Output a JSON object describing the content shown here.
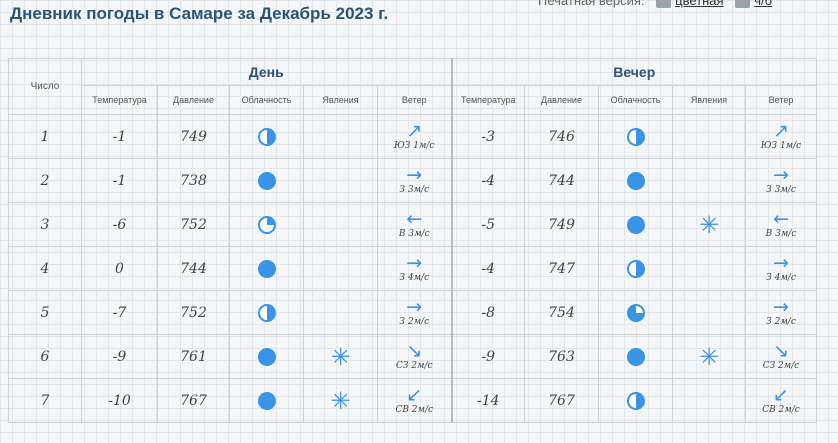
{
  "page": {
    "title": "Дневник погоды в Самаре за Декабрь 2023 г."
  },
  "print_bar": {
    "label": "Печатная версия:",
    "color_link": "цветная",
    "bw_link": "ч/б"
  },
  "table": {
    "num_header": "Число",
    "day_header": "День",
    "evening_header": "Вечер",
    "columns": [
      "Температура",
      "Давление",
      "Облачность",
      "Явления",
      "Ветер"
    ],
    "rows": [
      {
        "date": "1",
        "day": {
          "temp": "-1",
          "pressure": "749",
          "cloud": "half-icon",
          "phenomena": "",
          "wind": {
            "dir": "ne",
            "text": "ЮЗ 1м/с"
          }
        },
        "evening": {
          "temp": "-3",
          "pressure": "746",
          "cloud": "half-icon",
          "phenomena": "",
          "wind": {
            "dir": "ne",
            "text": "ЮЗ 1м/с"
          }
        }
      },
      {
        "date": "2",
        "day": {
          "temp": "-1",
          "pressure": "738",
          "cloud": "full-icon",
          "phenomena": "",
          "wind": {
            "dir": "e",
            "text": "З 3м/с"
          }
        },
        "evening": {
          "temp": "-4",
          "pressure": "744",
          "cloud": "full-icon",
          "phenomena": "",
          "wind": {
            "dir": "e",
            "text": "З 3м/с"
          }
        }
      },
      {
        "date": "3",
        "day": {
          "temp": "-6",
          "pressure": "752",
          "cloud": "q1-icon",
          "phenomena": "",
          "wind": {
            "dir": "w",
            "text": "В 3м/с"
          }
        },
        "evening": {
          "temp": "-5",
          "pressure": "749",
          "cloud": "full-icon",
          "phenomena": "snow-icon",
          "wind": {
            "dir": "w",
            "text": "В 3м/с"
          }
        }
      },
      {
        "date": "4",
        "day": {
          "temp": "0",
          "pressure": "744",
          "cloud": "full-icon",
          "phenomena": "",
          "wind": {
            "dir": "e",
            "text": "З 4м/с"
          }
        },
        "evening": {
          "temp": "-4",
          "pressure": "747",
          "cloud": "half-icon",
          "phenomena": "",
          "wind": {
            "dir": "e",
            "text": "З 4м/с"
          }
        }
      },
      {
        "date": "5",
        "day": {
          "temp": "-7",
          "pressure": "752",
          "cloud": "half-icon",
          "phenomena": "",
          "wind": {
            "dir": "e",
            "text": "З 2м/с"
          }
        },
        "evening": {
          "temp": "-8",
          "pressure": "754",
          "cloud": "q3-icon",
          "phenomena": "",
          "wind": {
            "dir": "e",
            "text": "З 2м/с"
          }
        }
      },
      {
        "date": "6",
        "day": {
          "temp": "-9",
          "pressure": "761",
          "cloud": "full-icon",
          "phenomena": "snow-icon",
          "wind": {
            "dir": "se",
            "text": "СЗ 2м/с"
          }
        },
        "evening": {
          "temp": "-9",
          "pressure": "763",
          "cloud": "full-icon",
          "phenomena": "snow-icon",
          "wind": {
            "dir": "se",
            "text": "СЗ 2м/с"
          }
        }
      },
      {
        "date": "7",
        "day": {
          "temp": "-10",
          "pressure": "767",
          "cloud": "full-icon",
          "phenomena": "snow-icon",
          "wind": {
            "dir": "sw",
            "text": "СВ 2м/с"
          }
        },
        "evening": {
          "temp": "-14",
          "pressure": "767",
          "cloud": "half-icon",
          "phenomena": "",
          "wind": {
            "dir": "sw",
            "text": "СВ 2м/с"
          }
        }
      }
    ]
  },
  "colors": {
    "accent": "#3a94e6",
    "title": "#2d5573"
  }
}
